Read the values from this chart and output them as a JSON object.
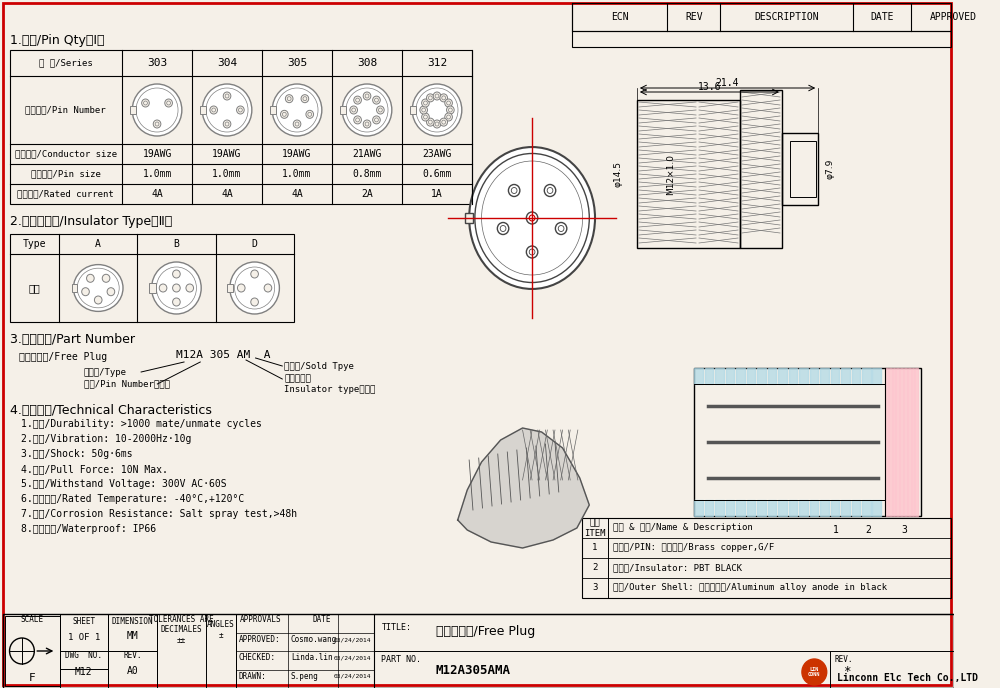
{
  "bg_color": "#f5f0e8",
  "border_color": "#cc0000",
  "table1_title": "1.针数/Pin Qty（Ⅰ）",
  "table1_series": [
    "303",
    "304",
    "305",
    "308",
    "312"
  ],
  "table1_row1": "系 列/Series",
  "table1_row2": "孔位排列/Pin Number",
  "table1_row3": "适配线缆/Conductor size",
  "table1_row3_vals": [
    "19AWG",
    "19AWG",
    "19AWG",
    "21AWG",
    "23AWG"
  ],
  "table1_row4": "导体直径/Pin size",
  "table1_row4_vals": [
    "1.0mm",
    "1.0mm",
    "1.0mm",
    "0.8mm",
    "0.6mm"
  ],
  "table1_row5": "额定电流/Rated current",
  "table1_row5_vals": [
    "4A",
    "4A",
    "4A",
    "2A",
    "1A"
  ],
  "table2_title": "2.络缘体型号/Insulator Type（Ⅱ）",
  "table2_types": [
    "Type",
    "A",
    "B",
    "D"
  ],
  "table2_row2": "型号",
  "section3_title": "3.编码原则/Part Number",
  "section3_line1": "浮动式插头/Free Plug",
  "section3_code": "M12A 305 AM  A",
  "section4_title": "4.技术特性/Technical Characteristics",
  "section4_items": [
    "1.寿命/Durability: >1000 mate/unmate cycles",
    "2.振动/Vibration: 10-2000Hz·10g",
    "3.冲击/Shock: 50g·6ms",
    "4.拉力/Pull Force: 10N Max.",
    "5.耐压/Withstand Voltage: 300V AC·60S",
    "6.温度等级/Rated Temperature: -40°C,+120°C",
    "7.盐雾/Corrosion Resistance: Salt spray test,>48h",
    "8.防水等级/Waterproof: IP66"
  ],
  "ecn_headers": [
    "ECN",
    "REV",
    "DESCRIPTION",
    "DATE",
    "APPROVED"
  ],
  "parts_table": [
    [
      "3",
      "外壳/Outer Shell: 铝氧极黑色/Aluminum alloy anode in black"
    ],
    [
      "2",
      "络缘体/Insulator: PBT BLACK"
    ],
    [
      "1",
      "公射芯/PIN: 黄铜镖金/Brass copper,G/F"
    ],
    [
      "序号\nITEM",
      "名称 & 规格/Name & Description"
    ]
  ],
  "title_box": {
    "title_label": "TITLE:",
    "title_value": "浮动式插头/Free Plug",
    "part_label": "PART NO.",
    "part_value": "M12A305AMA",
    "rev_label": "REV.",
    "rev_value": "*"
  },
  "footer_left": {
    "scale": "SCALE",
    "scale_val": "F",
    "sheet": "SHEET",
    "sheet_val": "1 OF 1",
    "dwg_no": "DWG  NO.",
    "dwg_val": "M12",
    "dim": "DIMENSION",
    "dim_val": "MM",
    "rev": "REV.",
    "rev_val": "A0",
    "approvals": "APPROVALS",
    "approved_label": "APPROVED:",
    "approved_val": "Cosmo.wang",
    "approved_date": "03/24/2014",
    "checked_label": "CHECKED:",
    "checked_val": "Linda.lin",
    "checked_date": "03/24/2014",
    "drawn_label": "DRAWN:",
    "drawn_val": "S.peng",
    "drawn_date": "03/24/2014"
  },
  "company": "Linconn Elc Tech Co.,LTD",
  "dim_labels": {
    "d1": "φ14.5",
    "d2": "M12×1.0",
    "d3": "φ7.9",
    "w1": "21.4",
    "w2": "13.6"
  }
}
